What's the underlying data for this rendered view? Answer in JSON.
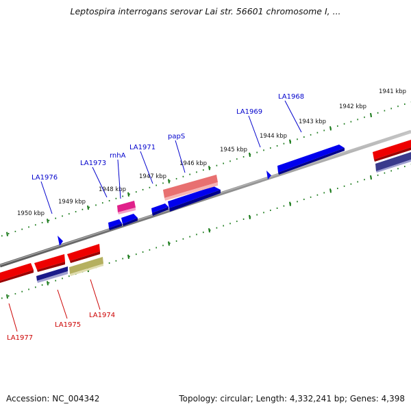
{
  "title": "Leptospira interrogans serovar Lai str. 56601 chromosome I, ...",
  "accession": "Accession: NC_004342",
  "summary": "Topology: circular; Length: 4,332,241 bp; Genes: 4,398",
  "scale_labels": [
    "1941 kbp",
    "1942 kbp",
    "1943 kbp",
    "1944 kbp",
    "1945 kbp",
    "1946 kbp",
    "1947 kbp",
    "1948 kbp",
    "1949 kbp",
    "1950 kbp"
  ],
  "gene_labels_forward": [
    "LA1968",
    "LA1969",
    "papS",
    "LA1971",
    "rnhA",
    "LA1973",
    "LA1976"
  ],
  "gene_labels_reverse": [
    "LA1974",
    "LA1975",
    "LA1977"
  ],
  "colors": {
    "forward_label": "#0000cc",
    "reverse_label": "#cc0000",
    "forward_gene": "#0000ee",
    "reverse_gene": "#ee0000",
    "rna_gene": "#e0208a",
    "pink_gene": "#f08080",
    "navy_gene": "#3a3a8c",
    "olive_gene": "#b5b060",
    "ticks": "#1a7a1a",
    "backbone": "#777777"
  }
}
